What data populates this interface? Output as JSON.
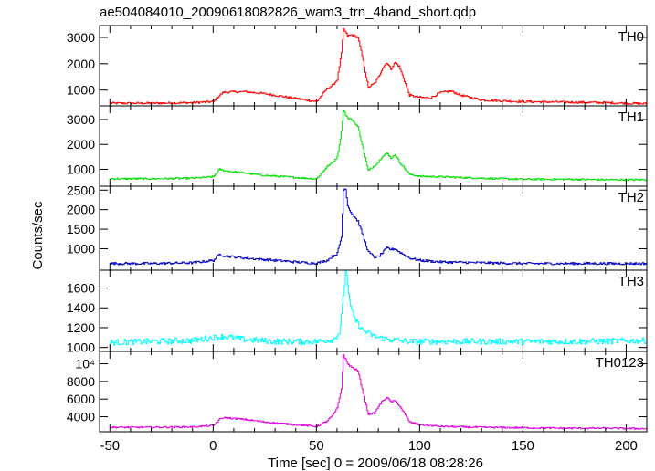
{
  "chart_data": {
    "type": "line",
    "title": "ae504084010_20090618082826_wam3_trn_4band_short.qdp",
    "xlabel": "Time [sec] 0 = 2009/06/18 08:28:26",
    "ylabel": "Counts/sec",
    "xlim": [
      -55,
      210
    ],
    "xticks": [
      -50,
      0,
      50,
      100,
      150,
      200
    ],
    "grid": false,
    "panels": [
      {
        "name": "TH0",
        "color": "#ff0000",
        "ylim": [
          400,
          3450
        ],
        "yticks": [
          1000,
          2000,
          3000
        ],
        "yticklabels": [
          "1000",
          "2000",
          "3000"
        ],
        "x": [
          -50,
          -30,
          -10,
          0,
          3,
          5,
          15,
          25,
          35,
          45,
          50,
          55,
          58,
          60,
          62,
          63,
          64,
          65,
          67,
          70,
          72,
          75,
          78,
          80,
          82,
          84,
          86,
          88,
          90,
          95,
          100,
          105,
          110,
          115,
          120,
          130,
          150,
          170,
          190,
          210
        ],
        "values": [
          500,
          500,
          520,
          560,
          800,
          920,
          940,
          860,
          740,
          620,
          560,
          1050,
          1200,
          1400,
          2400,
          3300,
          3200,
          3050,
          3100,
          3000,
          2300,
          1100,
          1250,
          1500,
          1850,
          2050,
          1800,
          2050,
          1900,
          800,
          720,
          700,
          900,
          960,
          800,
          620,
          560,
          540,
          520,
          480
        ],
        "noise": 40
      },
      {
        "name": "TH1",
        "color": "#00e000",
        "ylim": [
          320,
          3550
        ],
        "yticks": [
          1000,
          2000,
          3000
        ],
        "yticklabels": [
          "1000",
          "2000",
          "3000"
        ],
        "x": [
          -50,
          -30,
          -10,
          0,
          3,
          5,
          15,
          25,
          35,
          45,
          50,
          55,
          58,
          60,
          62,
          63,
          64,
          65,
          67,
          70,
          72,
          75,
          78,
          80,
          82,
          84,
          86,
          88,
          90,
          95,
          100,
          110,
          130,
          150,
          170,
          190,
          210
        ],
        "values": [
          620,
          620,
          640,
          700,
          1000,
          950,
          850,
          750,
          700,
          640,
          620,
          1100,
          1300,
          1500,
          2500,
          3400,
          3200,
          3050,
          3000,
          2700,
          2000,
          950,
          1150,
          1300,
          1550,
          1650,
          1450,
          1600,
          1300,
          800,
          720,
          700,
          640,
          600,
          600,
          580,
          580
        ],
        "noise": 35
      },
      {
        "name": "TH2",
        "color": "#0000c8",
        "ylim": [
          450,
          2600
        ],
        "yticks": [
          1000,
          1500,
          2000,
          2500
        ],
        "yticklabels": [
          "1000",
          "1500",
          "2000",
          "2500"
        ],
        "x": [
          -50,
          -30,
          -10,
          0,
          3,
          5,
          15,
          25,
          35,
          45,
          50,
          55,
          58,
          60,
          62,
          63,
          64,
          65,
          67,
          70,
          72,
          75,
          78,
          80,
          82,
          84,
          86,
          88,
          90,
          95,
          100,
          110,
          130,
          150,
          170,
          190,
          210
        ],
        "values": [
          620,
          620,
          640,
          700,
          860,
          820,
          760,
          720,
          680,
          640,
          630,
          700,
          820,
          880,
          1300,
          2500,
          2550,
          2100,
          1900,
          1700,
          1400,
          920,
          780,
          800,
          900,
          1020,
          980,
          1000,
          920,
          760,
          700,
          660,
          640,
          620,
          620,
          620,
          620
        ],
        "noise": 30
      },
      {
        "name": "TH3",
        "color": "#00ffff",
        "ylim": [
          960,
          1780
        ],
        "yticks": [
          1000,
          1200,
          1400,
          1600
        ],
        "yticklabels": [
          "1000",
          "1200",
          "1400",
          "1600"
        ],
        "x": [
          -50,
          -30,
          -10,
          0,
          5,
          15,
          30,
          50,
          58,
          61,
          63,
          64,
          65,
          66,
          68,
          72,
          78,
          85,
          95,
          120,
          150,
          180,
          210
        ],
        "values": [
          1050,
          1060,
          1070,
          1100,
          1110,
          1080,
          1060,
          1060,
          1080,
          1150,
          1500,
          1780,
          1650,
          1450,
          1300,
          1180,
          1110,
          1080,
          1060,
          1060,
          1060,
          1060,
          1070
        ],
        "noise": 30
      },
      {
        "name": "TH0123",
        "color": "#e000e0",
        "ylim": [
          2300,
          11400
        ],
        "yticks": [
          4000,
          6000,
          8000,
          10000
        ],
        "yticklabels": [
          "4000",
          "6000",
          "8000",
          "10⁴"
        ],
        "x": [
          -50,
          -30,
          -10,
          0,
          3,
          5,
          15,
          25,
          35,
          45,
          50,
          55,
          58,
          60,
          62,
          63,
          64,
          65,
          67,
          70,
          72,
          75,
          78,
          80,
          82,
          84,
          86,
          88,
          90,
          95,
          100,
          110,
          130,
          150,
          170,
          190,
          210
        ],
        "values": [
          2800,
          2800,
          2850,
          3000,
          3700,
          3900,
          3700,
          3400,
          3200,
          3000,
          2900,
          3500,
          4200,
          5000,
          7200,
          11000,
          10500,
          10000,
          9600,
          9200,
          7200,
          4300,
          4400,
          5200,
          5800,
          6200,
          5700,
          5800,
          5300,
          3400,
          3100,
          2900,
          2800,
          2750,
          2700,
          2700,
          2650
        ],
        "noise": 90
      }
    ]
  }
}
